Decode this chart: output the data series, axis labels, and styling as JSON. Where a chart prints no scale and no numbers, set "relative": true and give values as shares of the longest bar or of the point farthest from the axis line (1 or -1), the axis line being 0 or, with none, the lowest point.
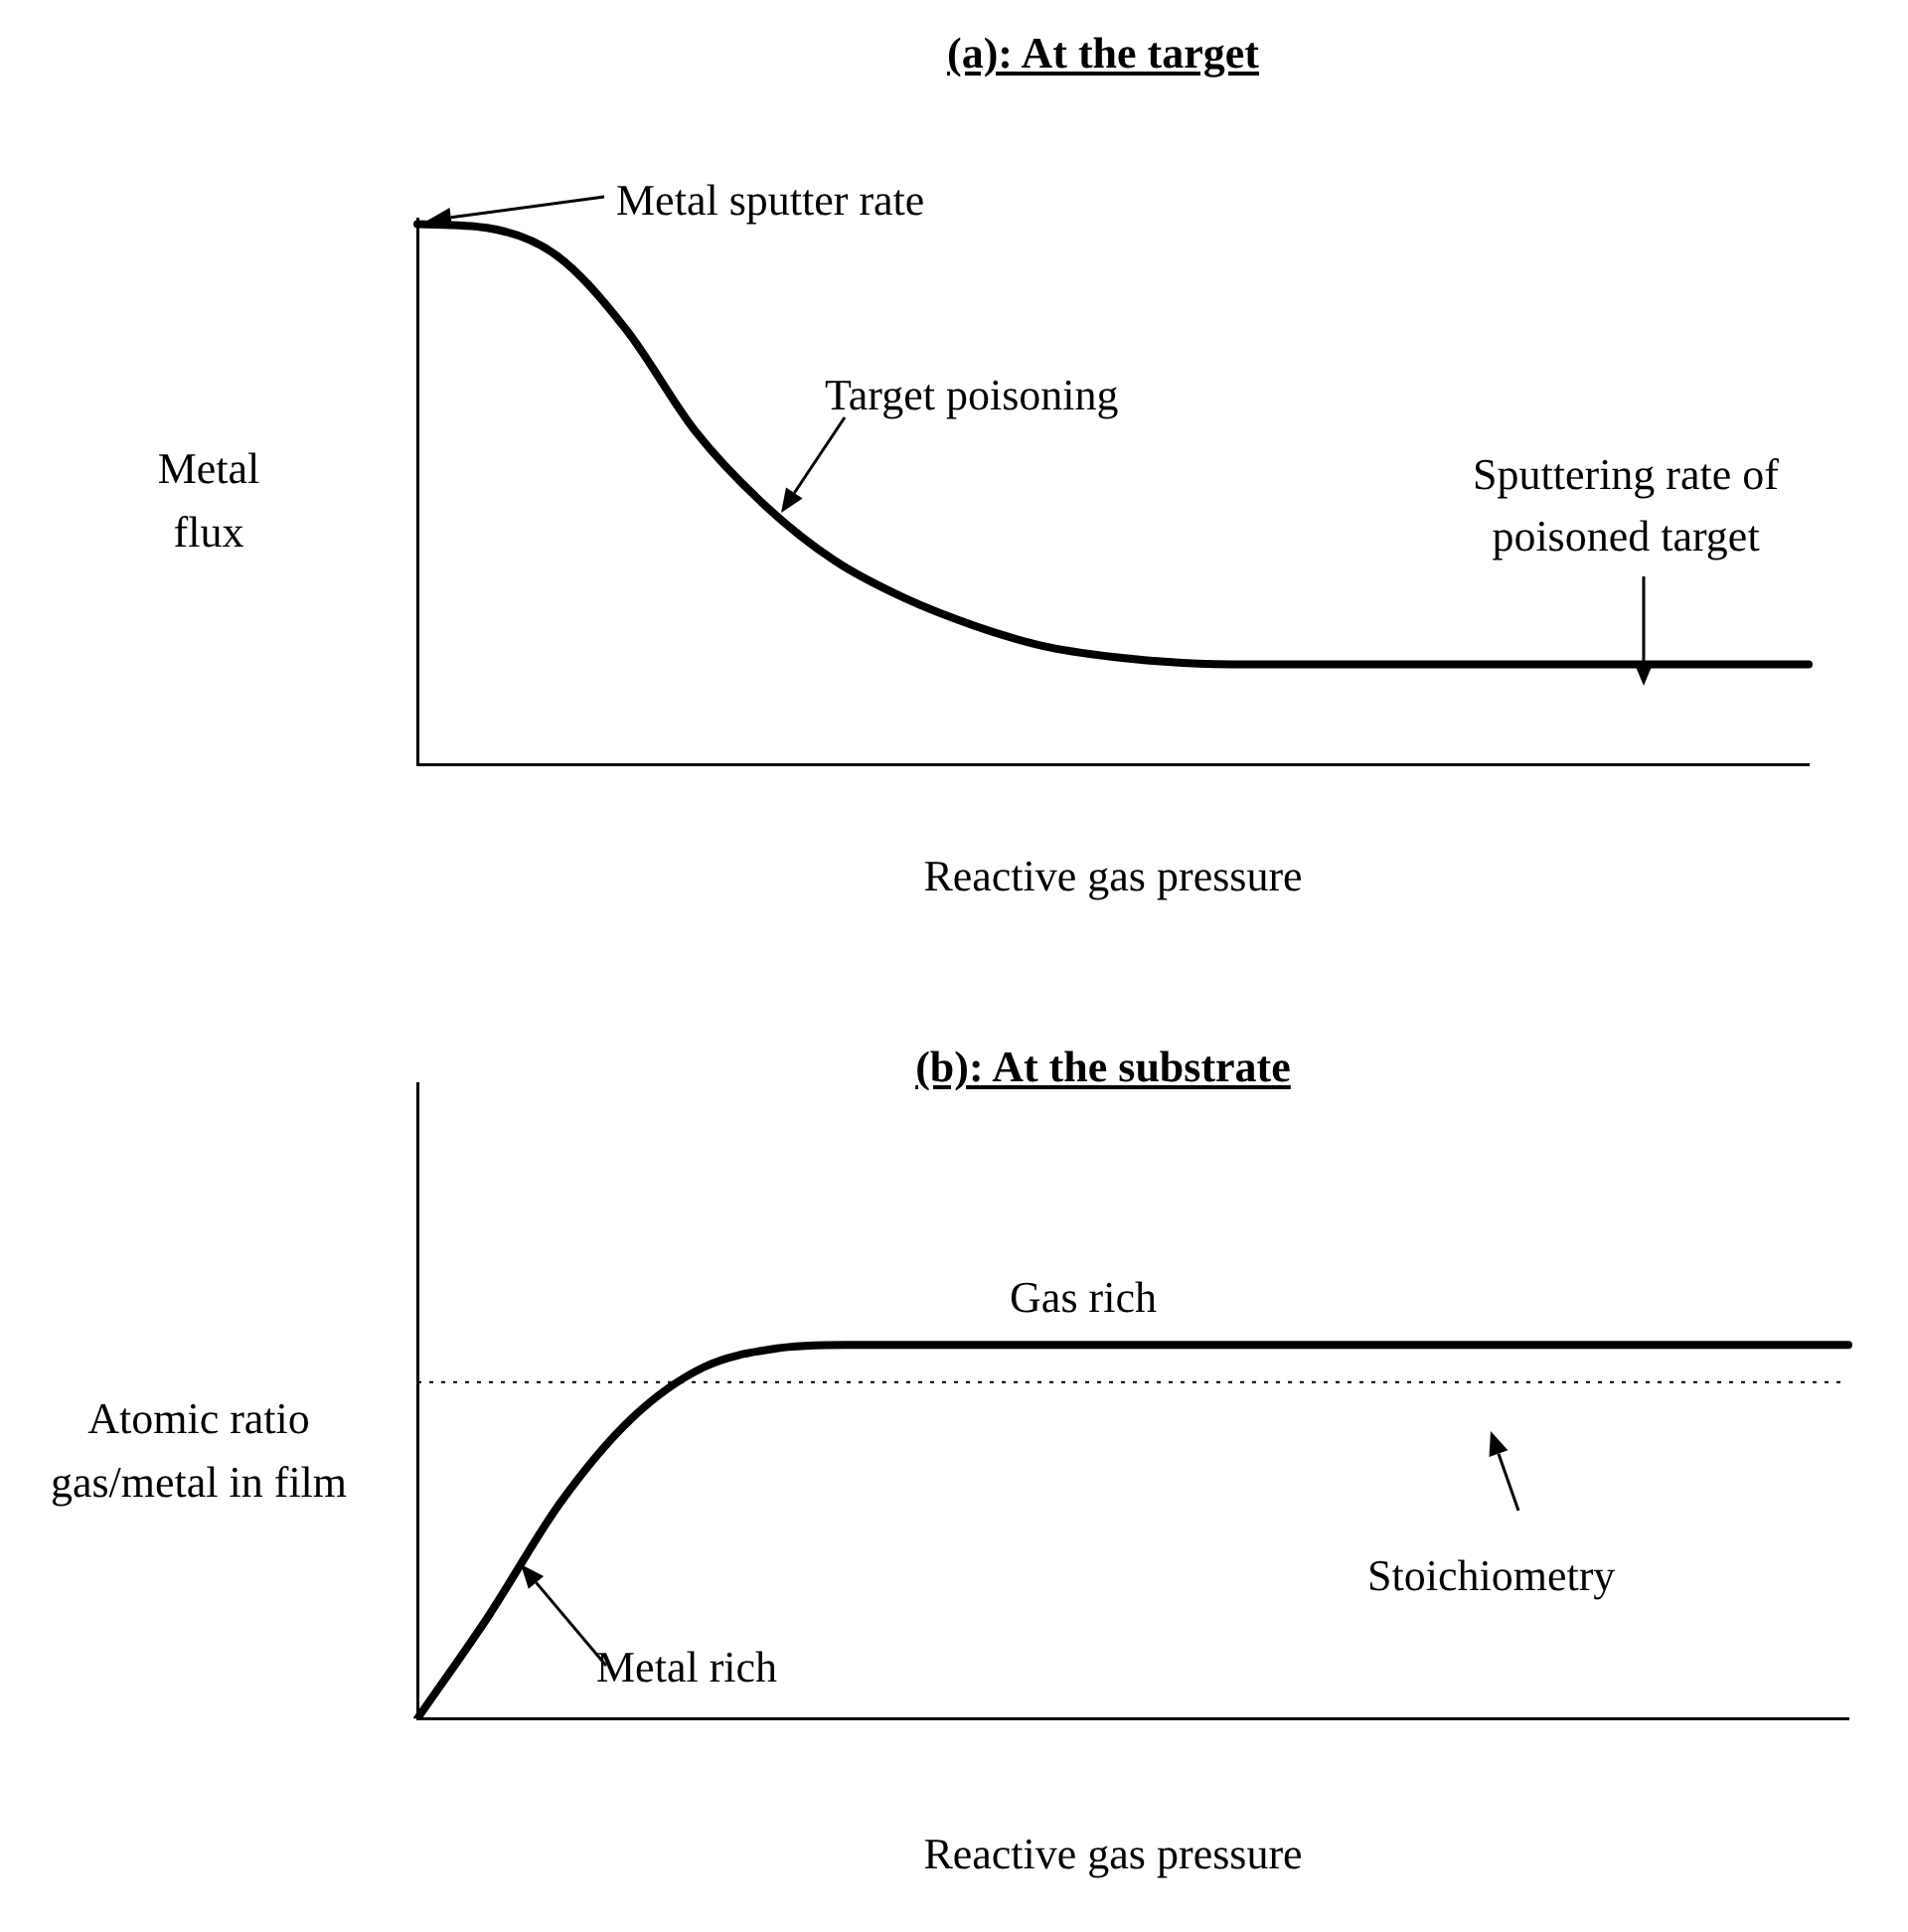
{
  "chart_data": [
    {
      "type": "line",
      "title": "(a): At the target",
      "xlabel": "Reactive gas pressure",
      "ylabel": "Metal flux",
      "relative": true,
      "categories": [
        null,
        null,
        null,
        null,
        null,
        null,
        null,
        null,
        null,
        null,
        null,
        null,
        null,
        null,
        null,
        null,
        null,
        null,
        null,
        null,
        null
      ],
      "series": [
        {
          "color": "#000000",
          "values": [
            1.0,
            0.993,
            0.942,
            0.805,
            0.616,
            0.479,
            0.377,
            0.308,
            0.257,
            0.219,
            0.199,
            0.188,
            0.185,
            0.185,
            0.185,
            0.185,
            0.185,
            0.185,
            0.185,
            0.185,
            0.185
          ]
        }
      ],
      "annotations": [
        "Metal sputter rate",
        "Target poisoning",
        "Sputtering rate of poisoned target"
      ],
      "legend": false,
      "grid": false,
      "marker": "none",
      "line_style": "solid"
    },
    {
      "type": "line",
      "title": "(b): At the substrate",
      "xlabel": "Reactive gas pressure",
      "ylabel": "Atomic ratio gas/metal in film",
      "relative": true,
      "categories": [
        null,
        null,
        null,
        null,
        null,
        null,
        null,
        null,
        null,
        null,
        null,
        null,
        null,
        null,
        null,
        null,
        null,
        null,
        null,
        null,
        null
      ],
      "series": [
        {
          "color": "#000000",
          "values": [
            0,
            0.276,
            0.578,
            0.804,
            0.94,
            0.99,
            1.0,
            1.0,
            1.0,
            1.0,
            1.0,
            1.0,
            1.0,
            1.0,
            1.0,
            1.0,
            1.0,
            1.0,
            1.0,
            1.0,
            1.0
          ]
        }
      ],
      "ref_lines": [
        {
          "axis": "y",
          "value": 0.9,
          "color": "#000000",
          "line_style": "dotted"
        }
      ],
      "annotations": [
        "Gas rich",
        "Metal rich",
        "Stoichiometry"
      ],
      "legend": false,
      "grid": false,
      "marker": "none",
      "line_style": "solid"
    }
  ]
}
